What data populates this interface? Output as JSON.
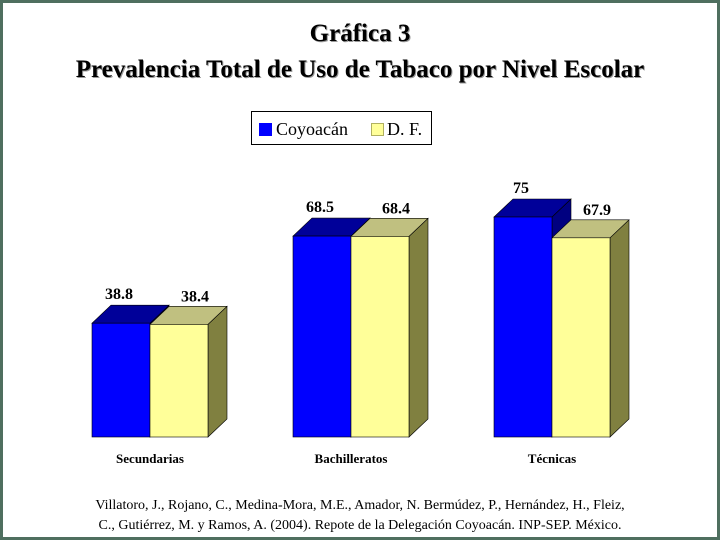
{
  "chart_data": {
    "type": "bar",
    "title": "Gráfica 3",
    "subtitle": "Prevalencia Total de Uso de Tabaco por Nivel Escolar",
    "categories": [
      "Secundarias",
      "Bachilleratos",
      "Técnicas"
    ],
    "series": [
      {
        "name": "Coyoacán",
        "values": [
          38.8,
          68.5,
          75
        ],
        "labels": [
          "38.8",
          "68.5",
          "75"
        ],
        "color": "#0000ff"
      },
      {
        "name": "D. F.",
        "values": [
          38.4,
          68.4,
          67.9
        ],
        "labels": [
          "38.4",
          "68.4",
          "67.9"
        ],
        "color": "#ffff99"
      }
    ],
    "ylim": [
      0,
      75
    ],
    "grid": false,
    "legend_position": "top-center",
    "style": "3d-bars"
  },
  "caption": {
    "line1": "Villatoro, J., Rojano, C., Medina-Mora, M.E., Amador, N. Bermúdez, P., Hernández, H., Fleiz,",
    "line2": "C., Gutiérrez, M. y Ramos, A. (2004). Repote de la Delegación Coyoacán. INP-SEP. México."
  },
  "colors": {
    "frame": "#4f6f5f",
    "blue_top": "#000099",
    "blue_side": "#000080",
    "yellow_top": "#c0c080",
    "yellow_side": "#808040"
  }
}
